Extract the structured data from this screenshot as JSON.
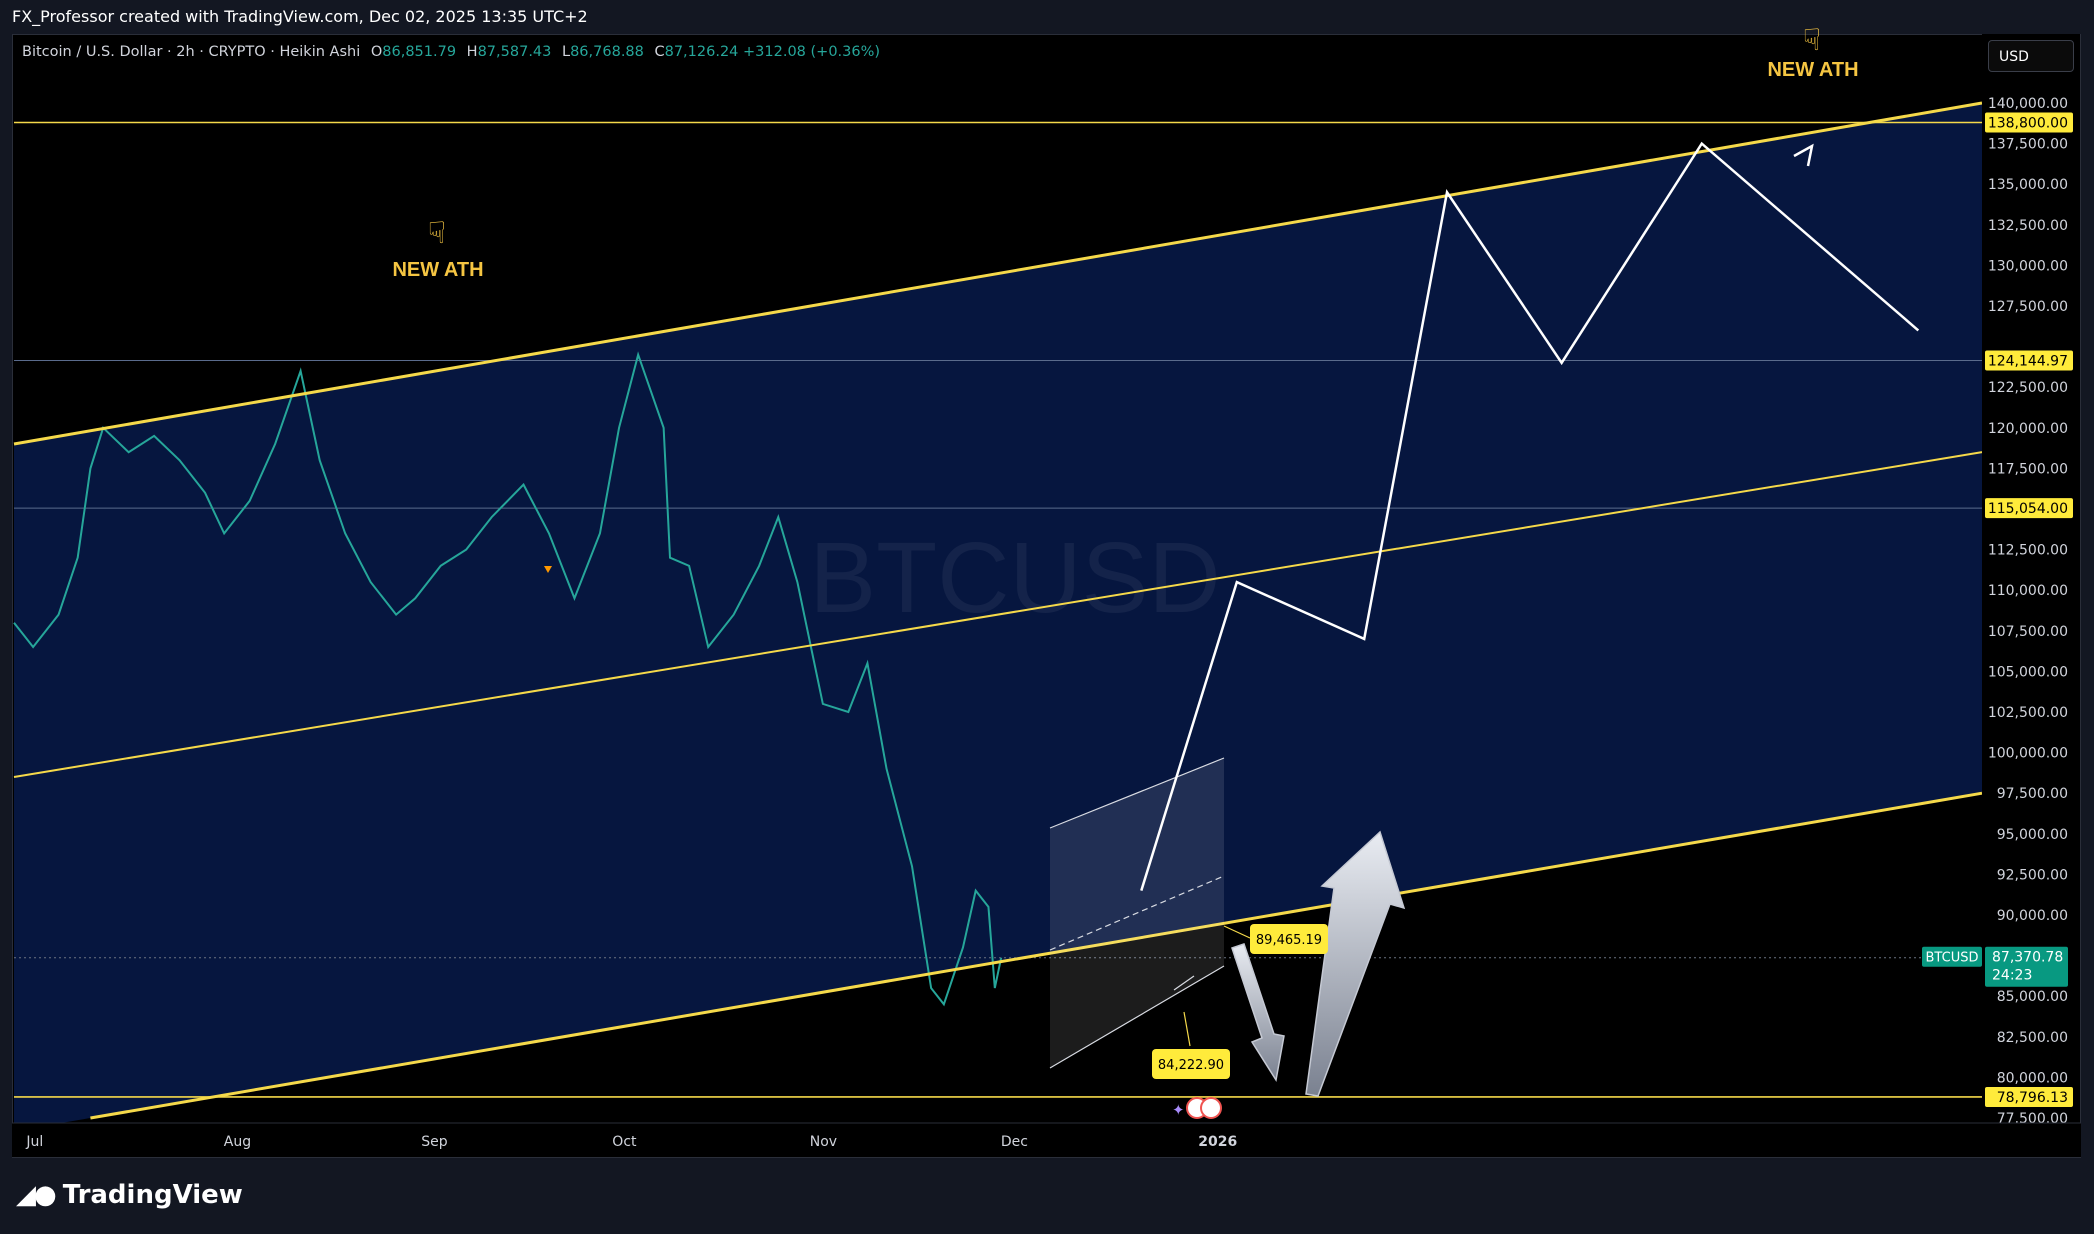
{
  "header": {
    "text": "FX_Professor created with TradingView.com, Dec 02, 2025 13:35 UTC+2"
  },
  "legend": {
    "symbol": "Bitcoin / U.S. Dollar · 2h · CRYPTO · Heikin Ashi",
    "o_label": "O",
    "o": "86,851.79",
    "h_label": "H",
    "h": "87,587.43",
    "l_label": "L",
    "l": "86,768.88",
    "c_label": "C",
    "c": "87,126.24",
    "change": "+312.08 (+0.36%)"
  },
  "currency_button": "USD",
  "watermark": "BTCUSD",
  "footer": {
    "logo_text": "TradingView"
  },
  "colors": {
    "background": "#000000",
    "channel_fill": "#06163f",
    "channel_line": "#f5d94a",
    "up": "#26a69a",
    "down": "#ef5350",
    "label_bg": "#ffeb3b"
  },
  "chart_data": {
    "type": "line",
    "title": "",
    "ylabel": "",
    "xlabel": "",
    "symbol": "BTCUSD",
    "style": "Heikin Ashi",
    "ylim": [
      77500,
      140000
    ],
    "yticks": [
      77500,
      80000,
      82500,
      85000,
      87500,
      90000,
      92500,
      95000,
      97500,
      100000,
      102500,
      105000,
      107500,
      110000,
      112500,
      115000,
      117500,
      120000,
      122500,
      125000,
      127500,
      130000,
      132500,
      135000,
      137500,
      140000
    ],
    "ytick_labels": [
      "77,500.00",
      "80,000.00",
      "82,500.00",
      "85,000.00",
      "",
      "90,000.00",
      "92,500.00",
      "95,000.00",
      "97,500.00",
      "100,000.00",
      "102,500.00",
      "105,000.00",
      "107,500.00",
      "110,000.00",
      "112,500.00",
      "",
      "117,500.00",
      "120,000.00",
      "122,500.00",
      "",
      "127,500.00",
      "130,000.00",
      "132,500.00",
      "135,000.00",
      "137,500.00",
      "140,000.00"
    ],
    "xticks": [
      "2025-07-01",
      "2025-08-01",
      "2025-09-01",
      "2025-10-01",
      "2025-11-01",
      "2025-12-01",
      "2026-01-01"
    ],
    "xtick_labels": [
      "Jul",
      "Aug",
      "Sep",
      "Oct",
      "Nov",
      "Dec",
      "2026"
    ],
    "x_range": [
      "2025-06-30",
      "2026-05-05"
    ],
    "price_series": {
      "x": [
        "2025-06-30",
        "2025-07-03",
        "2025-07-07",
        "2025-07-10",
        "2025-07-12",
        "2025-07-14",
        "2025-07-18",
        "2025-07-22",
        "2025-07-26",
        "2025-07-30",
        "2025-08-02",
        "2025-08-06",
        "2025-08-10",
        "2025-08-14",
        "2025-08-17",
        "2025-08-21",
        "2025-08-25",
        "2025-08-29",
        "2025-09-01",
        "2025-09-05",
        "2025-09-09",
        "2025-09-13",
        "2025-09-18",
        "2025-09-22",
        "2025-09-26",
        "2025-09-30",
        "2025-10-03",
        "2025-10-06",
        "2025-10-10",
        "2025-10-11",
        "2025-10-14",
        "2025-10-17",
        "2025-10-21",
        "2025-10-25",
        "2025-10-28",
        "2025-10-31",
        "2025-11-04",
        "2025-11-08",
        "2025-11-11",
        "2025-11-14",
        "2025-11-18",
        "2025-11-21",
        "2025-11-23",
        "2025-11-26",
        "2025-11-28",
        "2025-11-30",
        "2025-12-01",
        "2025-12-02"
      ],
      "values": [
        108000,
        106500,
        108500,
        112000,
        117500,
        120000,
        118500,
        119500,
        118000,
        116000,
        113500,
        115500,
        119000,
        123500,
        118000,
        113500,
        110500,
        108500,
        109500,
        111500,
        112500,
        114500,
        116500,
        113500,
        109500,
        113500,
        120000,
        124500,
        120000,
        112000,
        111500,
        106500,
        108500,
        111500,
        114500,
        110500,
        103000,
        102500,
        105500,
        99000,
        93000,
        85500,
        84500,
        88000,
        91500,
        90500,
        85500,
        87370
      ]
    },
    "annotations": {
      "horizontal_levels": [
        {
          "value": 138800,
          "label": "138,800.00"
        },
        {
          "value": 124144.97,
          "label": "124,144.97"
        },
        {
          "value": 115054,
          "label": "115,054.00"
        },
        {
          "value": 78796.13,
          "label": "78,796.13"
        }
      ],
      "current_price": {
        "symbol": "BTCUSD",
        "value": 87370.78,
        "label": "87,370.78",
        "countdown": "24:23"
      },
      "price_labels": [
        {
          "value": 89465.19,
          "label": "89,465.19"
        },
        {
          "value": 84222.9,
          "label": "84,222.90"
        }
      ],
      "channel": {
        "upper": [
          [
            "2025-06-30",
            119000
          ],
          [
            "2026-05-05",
            140000
          ]
        ],
        "middle": [
          [
            "2025-06-30",
            98500
          ],
          [
            "2026-05-05",
            118500
          ]
        ],
        "lower": [
          [
            "2025-07-12",
            77500
          ],
          [
            "2026-05-05",
            97500
          ]
        ]
      },
      "projection_path": {
        "x": [
          "2025-12-24",
          "2026-01-08",
          "2026-01-28",
          "2026-02-10",
          "2026-02-28",
          "2026-03-22",
          "2026-04-25"
        ],
        "values": [
          91500,
          110500,
          107000,
          134500,
          124000,
          137500,
          126000
        ]
      },
      "text_labels": [
        "NEW ATH",
        "NEW ATH"
      ]
    }
  }
}
